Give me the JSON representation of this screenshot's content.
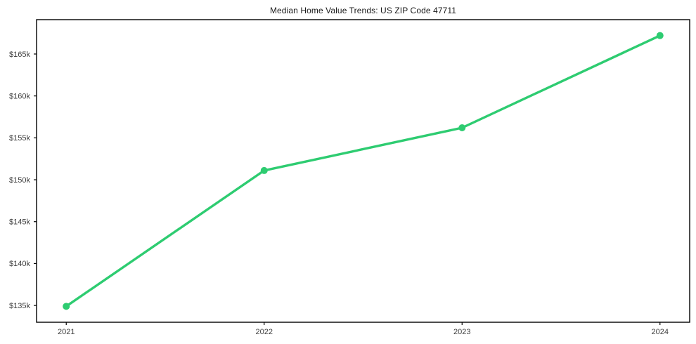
{
  "chart_data": {
    "type": "line",
    "title": "Median Home Value Trends: US ZIP Code 47711",
    "xlabel": "",
    "ylabel": "",
    "x": [
      2021,
      2022,
      2023,
      2024
    ],
    "series": [
      {
        "name": "Median Home Value",
        "values": [
          134900,
          151100,
          156200,
          167200
        ]
      }
    ],
    "xticks": [
      {
        "value": 2021,
        "label": "2021"
      },
      {
        "value": 2022,
        "label": "2022"
      },
      {
        "value": 2023,
        "label": "2023"
      },
      {
        "value": 2024,
        "label": "2024"
      }
    ],
    "yticks": [
      {
        "value": 135000,
        "label": "$135k"
      },
      {
        "value": 140000,
        "label": "$140k"
      },
      {
        "value": 145000,
        "label": "$145k"
      },
      {
        "value": 150000,
        "label": "$150k"
      },
      {
        "value": 155000,
        "label": "$155k"
      },
      {
        "value": 160000,
        "label": "$160k"
      },
      {
        "value": 165000,
        "label": "$165k"
      }
    ],
    "xlim": [
      2020.85,
      2024.15
    ],
    "ylim": [
      133000,
      169100
    ],
    "grid": false,
    "legend": "none",
    "colors": {
      "line": "#2ecc71",
      "marker": "#2ecc71",
      "spine": "#000000",
      "tick_label": "#3d3d3d",
      "background": "#ffffff"
    },
    "line_width": 3.4,
    "marker_radius": 5
  }
}
